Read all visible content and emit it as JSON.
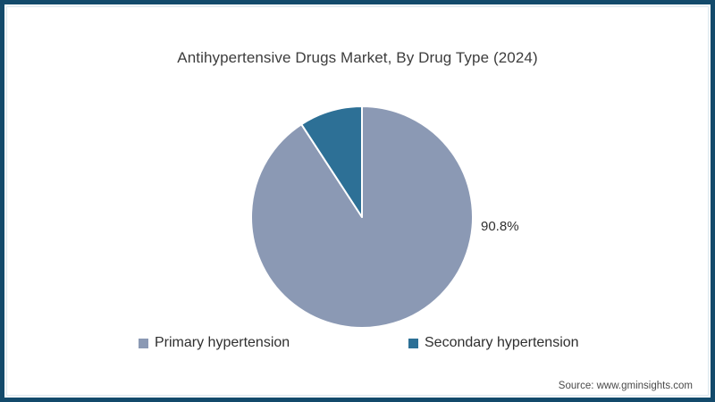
{
  "title": "Antihypertensive Drugs Market, By Drug Type (2024)",
  "source_label": "Source: www.gminsights.com",
  "colors": {
    "frame_border": "#134A6B",
    "inner_accent": "#dbe7ee",
    "primary_slice": "#8B99B4",
    "secondary_slice": "#2D7096",
    "divider_stroke": "#ffffff"
  },
  "chart_data": {
    "type": "pie",
    "title": "Antihypertensive Drugs Market, By Drug Type (2024)",
    "series": [
      {
        "name": "Primary hypertension",
        "value": 90.8,
        "color": "#8B99B4"
      },
      {
        "name": "Secondary hypertension",
        "value": 9.2,
        "color": "#2D7096"
      }
    ],
    "data_label": "90.8%",
    "start_angle_deg": 0,
    "direction": "clockwise",
    "legend_position": "bottom",
    "labels_shown": [
      "90.8%"
    ]
  }
}
